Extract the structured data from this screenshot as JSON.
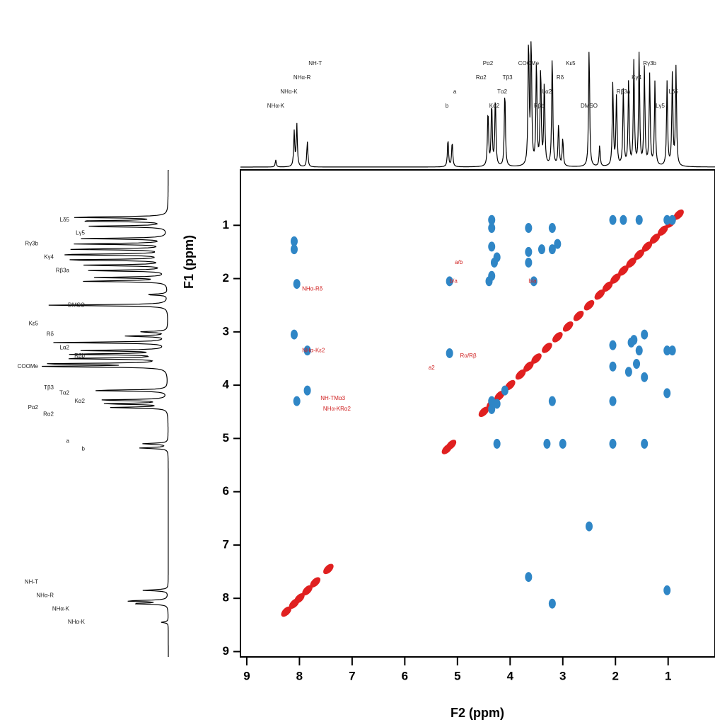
{
  "chart_data": {
    "type": "nmr-2d",
    "xlabel": "F2 (ppm)",
    "ylabel": "F1 (ppm)",
    "xlim": [
      9.12,
      0.11
    ],
    "ylim": [
      -0.04,
      9.1
    ],
    "xticks": [
      9,
      8,
      7,
      6,
      5,
      4,
      3,
      2,
      1
    ],
    "yticks": [
      1,
      2,
      3,
      4,
      5,
      6,
      7,
      8,
      9
    ],
    "spectrum": {
      "color": "#000000",
      "x": [
        8.45,
        8.1,
        8.05,
        7.85,
        5.18,
        5.1,
        4.42,
        4.35,
        4.28,
        4.1,
        3.65,
        3.6,
        3.5,
        3.42,
        3.35,
        3.2,
        3.08,
        3.0,
        2.5,
        2.3,
        2.05,
        1.98,
        1.85,
        1.75,
        1.65,
        1.55,
        1.45,
        1.35,
        1.25,
        1.02,
        0.92,
        0.85
      ],
      "values": [
        5,
        25,
        30,
        18,
        20,
        18,
        40,
        45,
        50,
        55,
        90,
        90,
        75,
        70,
        60,
        80,
        30,
        20,
        85,
        15,
        60,
        50,
        55,
        60,
        75,
        80,
        70,
        65,
        60,
        60,
        65,
        70
      ]
    },
    "series": [
      {
        "name": "diagonal",
        "color": "#e02020",
        "x": [
          0.8,
          0.95,
          1.1,
          1.25,
          1.4,
          1.55,
          1.7,
          1.85,
          2.0,
          2.15,
          2.3,
          2.5,
          2.7,
          2.9,
          3.1,
          3.3,
          3.5,
          3.65,
          3.8,
          4.0,
          4.2,
          4.35,
          4.5,
          5.12,
          5.2,
          7.45,
          7.7,
          7.85,
          8.0,
          8.1,
          8.25
        ],
        "y": [
          0.8,
          0.95,
          1.1,
          1.25,
          1.4,
          1.55,
          1.7,
          1.85,
          2.0,
          2.15,
          2.3,
          2.5,
          2.7,
          2.9,
          3.1,
          3.3,
          3.5,
          3.65,
          3.8,
          4.0,
          4.2,
          4.35,
          4.5,
          5.12,
          5.2,
          7.45,
          7.7,
          7.85,
          8.0,
          8.1,
          8.25
        ]
      },
      {
        "name": "cross",
        "color": "#2f86c6",
        "x": [
          4.35,
          4.35,
          3.65,
          3.2,
          2.05,
          1.85,
          1.55,
          1.02,
          0.92,
          3.65,
          3.4,
          3.2,
          3.1,
          4.35,
          4.25,
          3.65,
          5.15,
          4.4,
          4.35,
          4.3,
          3.55,
          8.1,
          8.1,
          8.05,
          8.1,
          7.85,
          7.85,
          8.05,
          5.15,
          2.05,
          1.45,
          1.65,
          1.7,
          1.55,
          1.02,
          0.92,
          2.05,
          1.75,
          1.6,
          1.45,
          4.1,
          4.35,
          4.25,
          2.05,
          3.2,
          1.02,
          4.35,
          4.25,
          3.3,
          3.0,
          2.05,
          1.45,
          1.02,
          3.65,
          3.2,
          2.5
        ],
        "y": [
          0.9,
          1.05,
          1.05,
          1.05,
          0.9,
          0.9,
          0.9,
          0.9,
          0.9,
          1.5,
          1.45,
          1.45,
          1.35,
          1.4,
          1.6,
          1.7,
          2.05,
          2.05,
          1.95,
          1.7,
          2.05,
          1.3,
          1.45,
          2.1,
          3.05,
          3.35,
          4.1,
          4.3,
          3.4,
          3.25,
          3.05,
          3.15,
          3.2,
          3.35,
          3.35,
          3.35,
          3.65,
          3.75,
          3.6,
          3.85,
          4.1,
          4.3,
          4.35,
          4.3,
          4.3,
          4.15,
          4.45,
          5.1,
          5.1,
          5.1,
          5.1,
          5.1,
          7.85,
          7.6,
          8.1,
          6.65
        ]
      }
    ],
    "spectrum_labels": [
      {
        "text": "NHα-K",
        "x": 8.45
      },
      {
        "text": "NHα-K",
        "x": 8.2
      },
      {
        "text": "NHα-R",
        "x": 7.95
      },
      {
        "text": "NH-T",
        "x": 7.7
      },
      {
        "text": "b",
        "x": 5.2
      },
      {
        "text": "a",
        "x": 5.05
      },
      {
        "text": "Rα2",
        "x": 4.55
      },
      {
        "text": "Pα2",
        "x": 4.42
      },
      {
        "text": "Kα2",
        "x": 4.3
      },
      {
        "text": "Tα2",
        "x": 4.15
      },
      {
        "text": "Tβ3",
        "x": 4.05
      },
      {
        "text": "COOMe",
        "x": 3.65
      },
      {
        "text": "Rβb",
        "x": 3.45
      },
      {
        "text": "Lα2",
        "x": 3.3
      },
      {
        "text": "Rδ",
        "x": 3.05
      },
      {
        "text": "Kε5",
        "x": 2.85
      },
      {
        "text": "DMSO",
        "x": 2.5
      },
      {
        "text": "Rβ3a",
        "x": 1.85
      },
      {
        "text": "Kγ4",
        "x": 1.6
      },
      {
        "text": "Rγ3b",
        "x": 1.35
      },
      {
        "text": "Lγ5",
        "x": 1.15
      },
      {
        "text": "Lδ5",
        "x": 0.9
      }
    ],
    "map_labels": [
      {
        "text": "NHα-Rδ",
        "x": 7.95,
        "y": 2.2
      },
      {
        "text": "NHα-Kε2",
        "x": 7.95,
        "y": 3.35
      },
      {
        "text": "NH-TMα3",
        "x": 7.6,
        "y": 4.25
      },
      {
        "text": "NHα-KRα2",
        "x": 7.55,
        "y": 4.45
      },
      {
        "text": "a/b",
        "x": 5.05,
        "y": 1.7
      },
      {
        "text": "b/a",
        "x": 5.15,
        "y": 2.05
      },
      {
        "text": "Rα/Rβ",
        "x": 4.95,
        "y": 3.45
      },
      {
        "text": "a2",
        "x": 5.55,
        "y": 3.68
      },
      {
        "text": "b/a",
        "x": 3.65,
        "y": 2.05
      }
    ]
  }
}
